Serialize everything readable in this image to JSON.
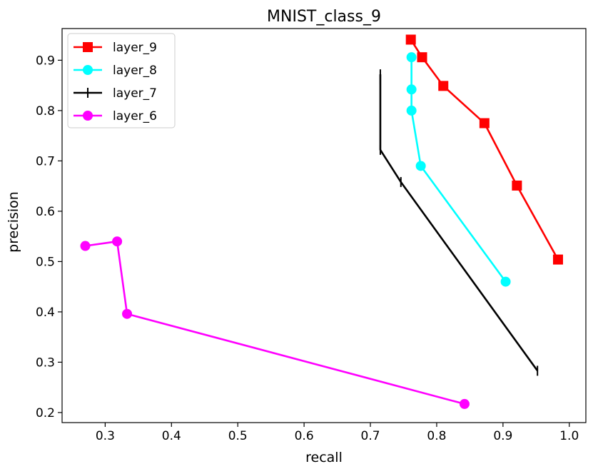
{
  "chart_data": {
    "type": "line",
    "title": "MNIST_class_9",
    "xlabel": "recall",
    "ylabel": "precision",
    "xlim": [
      0.235,
      1.025
    ],
    "ylim": [
      0.18,
      0.963
    ],
    "xticks": [
      0.3,
      0.4,
      0.5,
      0.6,
      0.7,
      0.8,
      0.9,
      1.0
    ],
    "xtick_labels": [
      "0.3",
      "0.4",
      "0.5",
      "0.6",
      "0.7",
      "0.8",
      "0.9",
      "1.0"
    ],
    "yticks": [
      0.2,
      0.3,
      0.4,
      0.5,
      0.6,
      0.7,
      0.8,
      0.9
    ],
    "ytick_labels": [
      "0.2",
      "0.3",
      "0.4",
      "0.5",
      "0.6",
      "0.7",
      "0.8",
      "0.9"
    ],
    "grid": false,
    "legend_position": "top-left",
    "series": [
      {
        "name": "layer_9",
        "color": "#ff0000",
        "marker": "square",
        "x": [
          0.761,
          0.778,
          0.81,
          0.872,
          0.921,
          0.983
        ],
        "y": [
          0.941,
          0.906,
          0.849,
          0.775,
          0.651,
          0.504
        ]
      },
      {
        "name": "layer_8",
        "color": "#00ffff",
        "marker": "circle",
        "x": [
          0.762,
          0.762,
          0.762,
          0.776,
          0.904
        ],
        "y": [
          0.906,
          0.842,
          0.8,
          0.69,
          0.46
        ]
      },
      {
        "name": "layer_7",
        "color": "#000000",
        "marker": "vline",
        "x": [
          0.715,
          0.715,
          0.715,
          0.746,
          0.952
        ],
        "y": [
          0.872,
          0.863,
          0.722,
          0.658,
          0.283
        ]
      },
      {
        "name": "layer_6",
        "color": "#ff00ff",
        "marker": "circle",
        "x": [
          0.27,
          0.318,
          0.333,
          0.842
        ],
        "y": [
          0.531,
          0.54,
          0.396,
          0.217
        ]
      }
    ]
  }
}
